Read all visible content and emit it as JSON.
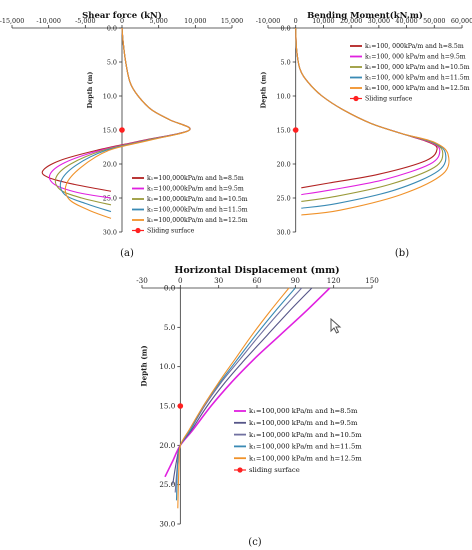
{
  "figure": {
    "panels": [
      "(a)",
      "(b)",
      "(c)"
    ]
  },
  "chart_data": [
    {
      "id": "a",
      "type": "line",
      "title": "Shear force (kN)",
      "ylabel": "Depth (m)",
      "panel_label": "(a)",
      "xlim": [
        -15000,
        15000
      ],
      "ylim": [
        0,
        30
      ],
      "x_ticks": [
        "-15,000",
        "-10,000",
        "-5,000",
        "0",
        "5,000",
        "10,000",
        "15,000"
      ],
      "y_ticks": [
        "0.0",
        "5.0",
        "10.0",
        "15.0",
        "20.0",
        "25.0",
        "30.0"
      ],
      "legend_position": "bottom-right",
      "series": [
        {
          "name": "k₁=100,000kPa/m and h=8.5m",
          "color": "#b22222",
          "points": [
            [
              0,
              0
            ],
            [
              150,
              2
            ],
            [
              500,
              5
            ],
            [
              1100,
              8
            ],
            [
              2200,
              10
            ],
            [
              4000,
              12
            ],
            [
              6500,
              13.5
            ],
            [
              9200,
              15
            ],
            [
              3000,
              16.5
            ],
            [
              -3500,
              18
            ],
            [
              -8500,
              19.5
            ],
            [
              -10800,
              21
            ],
            [
              -10000,
              22
            ],
            [
              -6500,
              23
            ],
            [
              -1500,
              24
            ]
          ]
        },
        {
          "name": "k₁=100,000kPa/m and h=9.5m",
          "color": "#e020e0",
          "points": [
            [
              0,
              0
            ],
            [
              150,
              2
            ],
            [
              500,
              5
            ],
            [
              1100,
              8
            ],
            [
              2200,
              10
            ],
            [
              4000,
              12
            ],
            [
              6500,
              13.5
            ],
            [
              9200,
              15
            ],
            [
              3200,
              16.5
            ],
            [
              -3000,
              18
            ],
            [
              -7800,
              19.8
            ],
            [
              -9800,
              21.5
            ],
            [
              -9200,
              23
            ],
            [
              -6000,
              24.2
            ],
            [
              -1500,
              25
            ]
          ]
        },
        {
          "name": "k₁=100,000kPa/m and h=10.5m",
          "color": "#9a9a3a",
          "points": [
            [
              0,
              0
            ],
            [
              150,
              2
            ],
            [
              500,
              5
            ],
            [
              1100,
              8
            ],
            [
              2200,
              10
            ],
            [
              4000,
              12
            ],
            [
              6500,
              13.5
            ],
            [
              9200,
              15
            ],
            [
              3400,
              16.5
            ],
            [
              -2600,
              18
            ],
            [
              -7000,
              20
            ],
            [
              -9000,
              22
            ],
            [
              -8400,
              23.8
            ],
            [
              -5500,
              25
            ],
            [
              -1500,
              26
            ]
          ]
        },
        {
          "name": "k₁=100,000kPa/m and h=11.5m",
          "color": "#3a8ab4",
          "points": [
            [
              0,
              0
            ],
            [
              150,
              2
            ],
            [
              500,
              5
            ],
            [
              1100,
              8
            ],
            [
              2200,
              10
            ],
            [
              4000,
              12
            ],
            [
              6500,
              13.5
            ],
            [
              9200,
              15
            ],
            [
              3600,
              16.5
            ],
            [
              -2200,
              18
            ],
            [
              -6300,
              20.2
            ],
            [
              -8300,
              22.5
            ],
            [
              -7800,
              24.5
            ],
            [
              -5000,
              25.8
            ],
            [
              -1500,
              27
            ]
          ]
        },
        {
          "name": "k₁=100,000kPa/m and h=12.5m",
          "color": "#f0922a",
          "points": [
            [
              0,
              0
            ],
            [
              150,
              2
            ],
            [
              500,
              5
            ],
            [
              1100,
              8
            ],
            [
              2200,
              10
            ],
            [
              4000,
              12
            ],
            [
              6500,
              13.5
            ],
            [
              9200,
              15
            ],
            [
              3800,
              16.5
            ],
            [
              -1800,
              18
            ],
            [
              -5600,
              20.5
            ],
            [
              -7600,
              23
            ],
            [
              -7200,
              25.2
            ],
            [
              -4500,
              26.8
            ],
            [
              -1500,
              28
            ]
          ]
        }
      ],
      "markers": [
        {
          "name": "Sliding surface",
          "x": 0,
          "y": 15,
          "color": "#ff2020"
        }
      ]
    },
    {
      "id": "b",
      "type": "line",
      "title": "Bending Moment(kN.m)",
      "ylabel": "Depth (m)",
      "panel_label": "(b)",
      "xlim": [
        -10000,
        60000
      ],
      "ylim": [
        0,
        30
      ],
      "x_ticks": [
        "-10,000",
        "0",
        "10,000",
        "20,000",
        "30,000",
        "40,000",
        "50,000",
        "60,000"
      ],
      "y_ticks": [
        "0.0",
        "5.0",
        "10.0",
        "15.0",
        "20.0",
        "25.0",
        "30.0"
      ],
      "legend_position": "top-right",
      "series": [
        {
          "name": "k₁=100, 000kPa/m and h=8.5m",
          "color": "#b22222",
          "points": [
            [
              0,
              0
            ],
            [
              300,
              3
            ],
            [
              1500,
              6
            ],
            [
              4500,
              8
            ],
            [
              9500,
              10
            ],
            [
              17000,
              12
            ],
            [
              27000,
              14
            ],
            [
              38000,
              15.5
            ],
            [
              48000,
              16.8
            ],
            [
              51000,
              17.8
            ],
            [
              47000,
              19.5
            ],
            [
              30000,
              21.5
            ],
            [
              12000,
              22.8
            ],
            [
              2000,
              23.5
            ]
          ]
        },
        {
          "name": "k₁=100, 000 kPa/m and h=9.5m",
          "color": "#e020e0",
          "points": [
            [
              0,
              0
            ],
            [
              300,
              3
            ],
            [
              1500,
              6
            ],
            [
              4500,
              8
            ],
            [
              9500,
              10
            ],
            [
              17000,
              12
            ],
            [
              27000,
              14
            ],
            [
              38000,
              15.5
            ],
            [
              48500,
              16.8
            ],
            [
              52000,
              18
            ],
            [
              48500,
              20
            ],
            [
              32000,
              22.3
            ],
            [
              13000,
              23.8
            ],
            [
              2000,
              24.5
            ]
          ]
        },
        {
          "name": "k₁=100, 000 kPa/m and h=10.5m",
          "color": "#9a9a3a",
          "points": [
            [
              0,
              0
            ],
            [
              300,
              3
            ],
            [
              1500,
              6
            ],
            [
              4500,
              8
            ],
            [
              9500,
              10
            ],
            [
              17000,
              12
            ],
            [
              27000,
              14
            ],
            [
              38000,
              15.5
            ],
            [
              49000,
              16.8
            ],
            [
              53000,
              18.2
            ],
            [
              50000,
              20.5
            ],
            [
              34000,
              23
            ],
            [
              14000,
              24.8
            ],
            [
              2000,
              25.5
            ]
          ]
        },
        {
          "name": "k₁=100, 000 kPa/m and h=11.5m",
          "color": "#3a8ab4",
          "points": [
            [
              0,
              0
            ],
            [
              300,
              3
            ],
            [
              1500,
              6
            ],
            [
              4500,
              8
            ],
            [
              9500,
              10
            ],
            [
              17000,
              12
            ],
            [
              27000,
              14
            ],
            [
              38000,
              15.5
            ],
            [
              49500,
              16.8
            ],
            [
              54000,
              18.4
            ],
            [
              51500,
              21
            ],
            [
              36000,
              23.8
            ],
            [
              15000,
              25.8
            ],
            [
              2000,
              26.5
            ]
          ]
        },
        {
          "name": "k₁=100, 000 kPa/m and h=12.5m",
          "color": "#f0922a",
          "points": [
            [
              0,
              0
            ],
            [
              300,
              3
            ],
            [
              1500,
              6
            ],
            [
              4500,
              8
            ],
            [
              9500,
              10
            ],
            [
              17000,
              12
            ],
            [
              27000,
              14
            ],
            [
              38000,
              15.5
            ],
            [
              50000,
              16.8
            ],
            [
              55000,
              18.6
            ],
            [
              53000,
              21.5
            ],
            [
              38000,
              24.5
            ],
            [
              16000,
              26.8
            ],
            [
              2000,
              27.5
            ]
          ]
        }
      ],
      "markers": [
        {
          "name": "Sliding surface",
          "x": 0,
          "y": 15,
          "color": "#ff2020"
        }
      ]
    },
    {
      "id": "c",
      "type": "line",
      "title": "Horizontal Displacement (mm)",
      "ylabel": "Depth  (m)",
      "panel_label": "(c)",
      "xlim": [
        -30,
        150
      ],
      "ylim": [
        0,
        30
      ],
      "x_ticks": [
        "-30",
        "0",
        "30",
        "60",
        "90",
        "120",
        "150"
      ],
      "y_ticks": [
        "0.0",
        "5.0",
        "10.0",
        "15.0",
        "20.0",
        "25.0",
        "30.0"
      ],
      "legend_position": "bottom-right",
      "series": [
        {
          "name": "k₁=100,000 kPa/m and h=8.5m",
          "color": "#e020e0",
          "points": [
            [
              117,
              0
            ],
            [
              98,
              3
            ],
            [
              78,
              6
            ],
            [
              58,
              9
            ],
            [
              40,
              12
            ],
            [
              24,
              15
            ],
            [
              10,
              18
            ],
            [
              0,
              20
            ],
            [
              -6,
              22
            ],
            [
              -12,
              24
            ]
          ]
        },
        {
          "name": "k₁=100,000 kPa/m and h=9.5m",
          "color": "#555588",
          "points": [
            [
              103,
              0
            ],
            [
              85,
              3
            ],
            [
              68,
              6
            ],
            [
              51,
              9
            ],
            [
              35,
              12
            ],
            [
              21,
              15
            ],
            [
              9,
              18
            ],
            [
              0,
              20
            ],
            [
              -3,
              22
            ],
            [
              -6,
              25
            ]
          ]
        },
        {
          "name": "k₁=100,000 kPa/m and h=10.5m",
          "color": "#7070a0",
          "points": [
            [
              95,
              0
            ],
            [
              78,
              3
            ],
            [
              62,
              6
            ],
            [
              47,
              9
            ],
            [
              32,
              12
            ],
            [
              19,
              15
            ],
            [
              8,
              18
            ],
            [
              0,
              20
            ],
            [
              -2,
              22
            ],
            [
              -4,
              26
            ]
          ]
        },
        {
          "name": "k₁=100,000 kPa/m and h=11.5m",
          "color": "#3a8ab4",
          "points": [
            [
              90,
              0
            ],
            [
              74,
              3
            ],
            [
              59,
              6
            ],
            [
              45,
              9
            ],
            [
              31,
              12
            ],
            [
              18,
              15
            ],
            [
              8,
              18
            ],
            [
              0,
              20
            ],
            [
              -2,
              22
            ],
            [
              -3,
              27
            ]
          ]
        },
        {
          "name": "k₁=100,000 kPa/m and h=12.5m",
          "color": "#f0922a",
          "points": [
            [
              85,
              0
            ],
            [
              70,
              3
            ],
            [
              56,
              6
            ],
            [
              43,
              9
            ],
            [
              30,
              12
            ],
            [
              18,
              15
            ],
            [
              7,
              18
            ],
            [
              0,
              20
            ],
            [
              -1,
              22
            ],
            [
              -2,
              28
            ]
          ]
        }
      ],
      "markers": [
        {
          "name": "sliding surface",
          "x": 0,
          "y": 15,
          "color": "#ff2020"
        }
      ]
    }
  ]
}
